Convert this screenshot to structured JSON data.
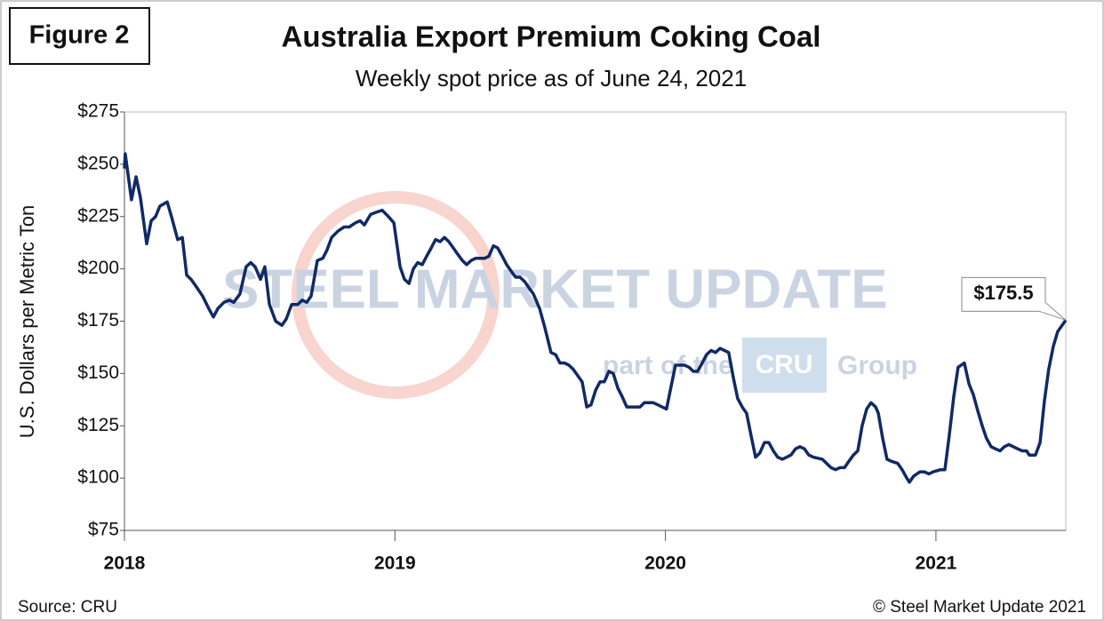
{
  "chart_data": {
    "type": "line",
    "figure_label": "Figure 2",
    "title": "Australia Export Premium Coking Coal",
    "subtitle": "Weekly spot price as of June 24, 2021",
    "y_label": "U.S. Dollars per Metric Ton",
    "source": "Source: CRU",
    "copyright": "© Steel Market Update 2021",
    "watermark": [
      "STEEL MARKET UPDATE",
      "part of the",
      "CRU",
      "Group"
    ],
    "annotation": "$175.5",
    "color": "#112a66",
    "xlim": [
      2018,
      2021.48
    ],
    "xticks": [
      2018,
      2019,
      2020,
      2021
    ],
    "ylim": [
      75,
      275
    ],
    "yticks": [
      {
        "value": 75,
        "label": "$75"
      },
      {
        "value": 100,
        "label": "$100"
      },
      {
        "value": 125,
        "label": "$125"
      },
      {
        "value": 150,
        "label": "$150"
      },
      {
        "value": 175,
        "label": "$175"
      },
      {
        "value": 200,
        "label": "$200"
      },
      {
        "value": 225,
        "label": "$225"
      },
      {
        "value": 250,
        "label": "$250"
      },
      {
        "value": 275,
        "label": "$275"
      }
    ],
    "x": [
      2018.0,
      2018.003,
      2018.026,
      2018.043,
      2018.059,
      2018.082,
      2018.099,
      2018.115,
      2018.131,
      2018.158,
      2018.174,
      2018.197,
      2018.214,
      2018.23,
      2018.246,
      2018.263,
      2018.289,
      2018.312,
      2018.329,
      2018.345,
      2018.368,
      2018.388,
      2018.404,
      2018.427,
      2018.45,
      2018.467,
      2018.483,
      2018.503,
      2018.519,
      2018.536,
      2018.559,
      2018.582,
      2018.598,
      2018.618,
      2018.641,
      2018.657,
      2018.674,
      2018.69,
      2018.713,
      2018.733,
      2018.749,
      2018.766,
      2018.789,
      2018.812,
      2018.831,
      2018.854,
      2018.871,
      2018.887,
      2018.91,
      2018.93,
      2018.953,
      2018.976,
      2018.996,
      2019.019,
      2019.035,
      2019.052,
      2019.068,
      2019.084,
      2019.101,
      2019.117,
      2019.134,
      2019.15,
      2019.167,
      2019.183,
      2019.199,
      2019.216,
      2019.232,
      2019.249,
      2019.265,
      2019.282,
      2019.298,
      2019.331,
      2019.347,
      2019.364,
      2019.38,
      2019.397,
      2019.413,
      2019.429,
      2019.446,
      2019.462,
      2019.479,
      2019.495,
      2019.512,
      2019.535,
      2019.554,
      2019.577,
      2019.594,
      2019.61,
      2019.627,
      2019.643,
      2019.659,
      2019.692,
      2019.709,
      2019.725,
      2019.742,
      2019.758,
      2019.774,
      2019.791,
      2019.807,
      2019.824,
      2019.84,
      2019.857,
      2019.889,
      2019.906,
      2019.922,
      2019.955,
      2019.972,
      2020.004,
      2020.037,
      2020.07,
      2020.087,
      2020.103,
      2020.119,
      2020.136,
      2020.152,
      2020.169,
      2020.185,
      2020.202,
      2020.218,
      2020.234,
      2020.251,
      2020.267,
      2020.284,
      2020.3,
      2020.317,
      2020.333,
      2020.349,
      2020.366,
      2020.382,
      2020.399,
      2020.415,
      2020.432,
      2020.448,
      2020.464,
      2020.481,
      2020.497,
      2020.514,
      2020.53,
      2020.547,
      2020.58,
      2020.596,
      2020.612,
      2020.629,
      2020.645,
      2020.662,
      2020.678,
      2020.695,
      2020.711,
      2020.727,
      2020.744,
      2020.76,
      2020.777,
      2020.787,
      2020.803,
      2020.819,
      2020.836,
      2020.859,
      2020.875,
      2020.892,
      2020.902,
      2020.918,
      2020.941,
      2020.957,
      2020.974,
      2020.99,
      2021.017,
      2021.033,
      2021.049,
      2021.066,
      2021.082,
      2021.105,
      2021.122,
      2021.138,
      2021.155,
      2021.171,
      2021.187,
      2021.204,
      2021.22,
      2021.237,
      2021.253,
      2021.27,
      2021.286,
      2021.302,
      2021.319,
      2021.335,
      2021.345,
      2021.368,
      2021.385,
      2021.401,
      2021.417,
      2021.434,
      2021.45,
      2021.48
    ],
    "values": [
      248,
      255,
      233,
      244,
      234,
      212,
      223,
      225,
      230,
      232,
      225,
      214,
      215,
      197,
      195,
      192,
      187,
      181,
      177,
      181,
      184,
      185,
      184,
      188,
      201,
      203,
      201,
      195,
      201,
      183,
      175,
      173,
      176,
      183,
      183,
      185,
      184,
      187,
      204,
      205,
      209,
      215,
      218,
      220,
      220,
      222,
      223,
      221,
      226,
      227,
      228,
      225,
      222,
      201,
      195,
      193,
      200,
      203,
      202,
      206,
      210,
      214,
      213,
      215,
      213,
      210,
      207,
      204,
      202,
      204,
      205,
      205,
      206,
      211,
      210,
      206,
      202,
      199,
      196,
      196,
      194,
      191,
      188,
      181,
      172,
      160,
      159,
      155,
      155,
      154,
      152,
      146,
      134,
      135,
      142,
      146,
      146,
      151,
      150,
      143,
      139,
      134,
      134,
      134,
      136,
      136,
      135,
      133,
      154,
      154,
      153,
      151,
      151,
      155,
      159,
      161,
      160,
      162,
      161,
      160,
      148,
      138,
      134,
      131,
      120,
      110,
      112,
      117,
      117,
      113,
      110,
      109,
      110,
      111,
      114,
      115,
      114,
      111,
      110,
      109,
      107,
      105,
      104,
      105,
      105,
      108,
      111,
      113,
      125,
      133,
      136,
      134,
      131,
      119,
      109,
      108,
      107,
      104,
      100,
      98,
      101,
      103,
      103,
      102,
      103,
      104,
      104,
      120,
      139,
      153,
      155,
      145,
      140,
      132,
      125,
      119,
      115,
      114,
      113,
      115,
      116,
      115,
      114,
      113,
      113,
      111,
      111,
      117,
      137,
      152,
      163,
      170,
      175.5
    ]
  }
}
